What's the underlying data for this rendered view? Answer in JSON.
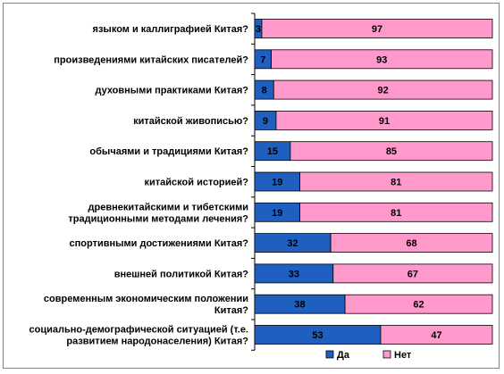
{
  "colors": {
    "yes": "#1f5fbf",
    "no": "#ff99cc"
  },
  "chart_data": {
    "type": "bar",
    "orientation": "horizontal",
    "stacked": "percent",
    "categories": [
      "языком и каллиграфией Китая?",
      "произведениями китайских писателей?",
      "духовными практиками Китая?",
      "китайской живописью?",
      "обычаями и традициями Китая?",
      "китайской историей?",
      "древнекитайскими и тибетскими традиционными методами лечения?",
      "спортивными достижениями Китая?",
      "внешней политикой Китая?",
      "современным экономическим положении Китая?",
      "социально-демографической ситуацией (т.е. развитием народонаселения) Китая?"
    ],
    "series": [
      {
        "name": "Да",
        "values": [
          3,
          7,
          8,
          9,
          15,
          19,
          19,
          32,
          33,
          38,
          53
        ]
      },
      {
        "name": "Нет",
        "values": [
          97,
          93,
          92,
          91,
          85,
          81,
          81,
          68,
          67,
          62,
          47
        ]
      }
    ],
    "xlim": [
      0,
      100
    ],
    "grid": false,
    "legend": "bottom-right"
  }
}
